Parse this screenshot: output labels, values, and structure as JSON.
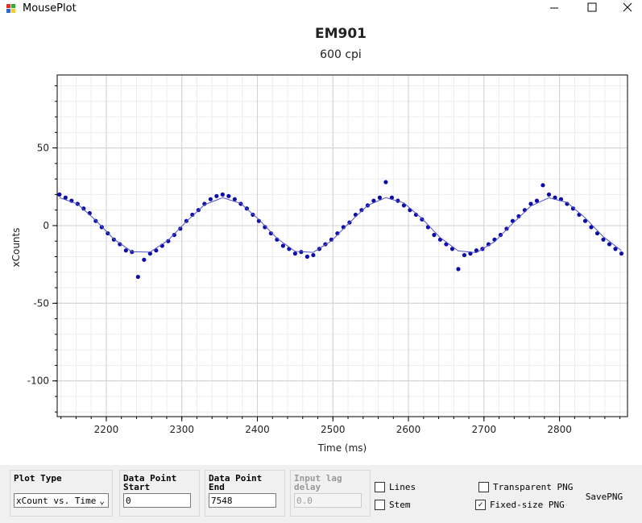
{
  "window": {
    "title": "MousePlot"
  },
  "chart_data": {
    "type": "scatter",
    "title": "EM901",
    "subtitle": "600 cpi",
    "x_label": "Time (ms)",
    "y_label": "xCounts",
    "xlim": [
      2135,
      2890
    ],
    "ylim": [
      -123,
      97
    ],
    "xticks": [
      2200,
      2300,
      2400,
      2500,
      2600,
      2700,
      2800
    ],
    "yticks": [
      -100,
      -50,
      0,
      50
    ],
    "x_minor_step": 20,
    "y_minor_step": 10,
    "grid": true,
    "series": [
      {
        "color": "#0c0ca8",
        "x": [
          2138,
          2146,
          2154,
          2162,
          2170,
          2178,
          2186,
          2194,
          2202,
          2210,
          2218,
          2226,
          2234,
          2242,
          2250,
          2258,
          2266,
          2274,
          2282,
          2290,
          2298,
          2306,
          2314,
          2322,
          2330,
          2338,
          2346,
          2354,
          2362,
          2370,
          2378,
          2386,
          2394,
          2402,
          2410,
          2418,
          2426,
          2434,
          2442,
          2450,
          2458,
          2466,
          2474,
          2482,
          2490,
          2498,
          2506,
          2514,
          2522,
          2530,
          2538,
          2546,
          2554,
          2562,
          2570,
          2578,
          2586,
          2594,
          2602,
          2610,
          2618,
          2626,
          2634,
          2642,
          2650,
          2658,
          2666,
          2674,
          2682,
          2690,
          2698,
          2706,
          2714,
          2722,
          2730,
          2738,
          2746,
          2754,
          2762,
          2770,
          2778,
          2786,
          2794,
          2802,
          2810,
          2818,
          2826,
          2834,
          2842,
          2850,
          2858,
          2866,
          2874,
          2882
        ],
        "values": [
          20,
          18,
          16,
          14,
          11,
          8,
          3,
          -1,
          -5,
          -9,
          -12,
          -16,
          -17,
          -33,
          -22,
          -18,
          -16,
          -13,
          -10,
          -6,
          -2,
          3,
          7,
          10,
          14,
          17,
          19,
          20,
          19,
          17,
          14,
          11,
          7,
          3,
          -1,
          -5,
          -9,
          -13,
          -15,
          -18,
          -17,
          -20,
          -19,
          -15,
          -12,
          -9,
          -5,
          -1,
          2,
          7,
          10,
          13,
          16,
          18,
          28,
          18,
          16,
          13,
          10,
          7,
          4,
          -1,
          -6,
          -9,
          -12,
          -15,
          -28,
          -19,
          -18,
          -16,
          -15,
          -12,
          -9,
          -6,
          -2,
          3,
          6,
          10,
          14,
          16,
          26,
          20,
          18,
          17,
          14,
          11,
          7,
          3,
          -1,
          -5,
          -9,
          -12,
          -15,
          -18
        ]
      },
      {
        "type": "line",
        "color": "#5050c8",
        "x": [
          2138,
          2162,
          2186,
          2210,
          2234,
          2258,
          2282,
          2306,
          2330,
          2354,
          2378,
          2402,
          2426,
          2450,
          2474,
          2498,
          2522,
          2546,
          2570,
          2594,
          2618,
          2642,
          2666,
          2690,
          2714,
          2738,
          2762,
          2786,
          2810,
          2834,
          2858,
          2882
        ],
        "values": [
          18.0,
          13.9,
          3.4,
          -8.7,
          -16.8,
          -17.1,
          -9.4,
          2.6,
          13.4,
          18.0,
          14.3,
          3.9,
          -8.2,
          -16.6,
          -17.2,
          -9.9,
          2.0,
          13.0,
          18.0,
          14.6,
          4.5,
          -7.7,
          -16.3,
          -17.4,
          -10.4,
          1.4,
          12.6,
          17.9,
          14.9,
          5.0,
          -7.2,
          -16.1
        ]
      }
    ]
  },
  "controls": {
    "plot_type": {
      "label": "Plot Type",
      "value": "xCount vs. Time"
    },
    "start": {
      "label": "Data Point Start",
      "value": "0"
    },
    "end": {
      "label": "Data Point End",
      "value": "7548"
    },
    "lag": {
      "label": "Input lag delay",
      "value": "0.0"
    },
    "lines": {
      "label": "Lines",
      "checked": false
    },
    "stem": {
      "label": "Stem",
      "checked": false
    },
    "transparent": {
      "label": "Transparent PNG",
      "checked": false
    },
    "fixed": {
      "label": "Fixed-size PNG",
      "checked": true
    },
    "save": {
      "label": "SavePNG"
    }
  }
}
